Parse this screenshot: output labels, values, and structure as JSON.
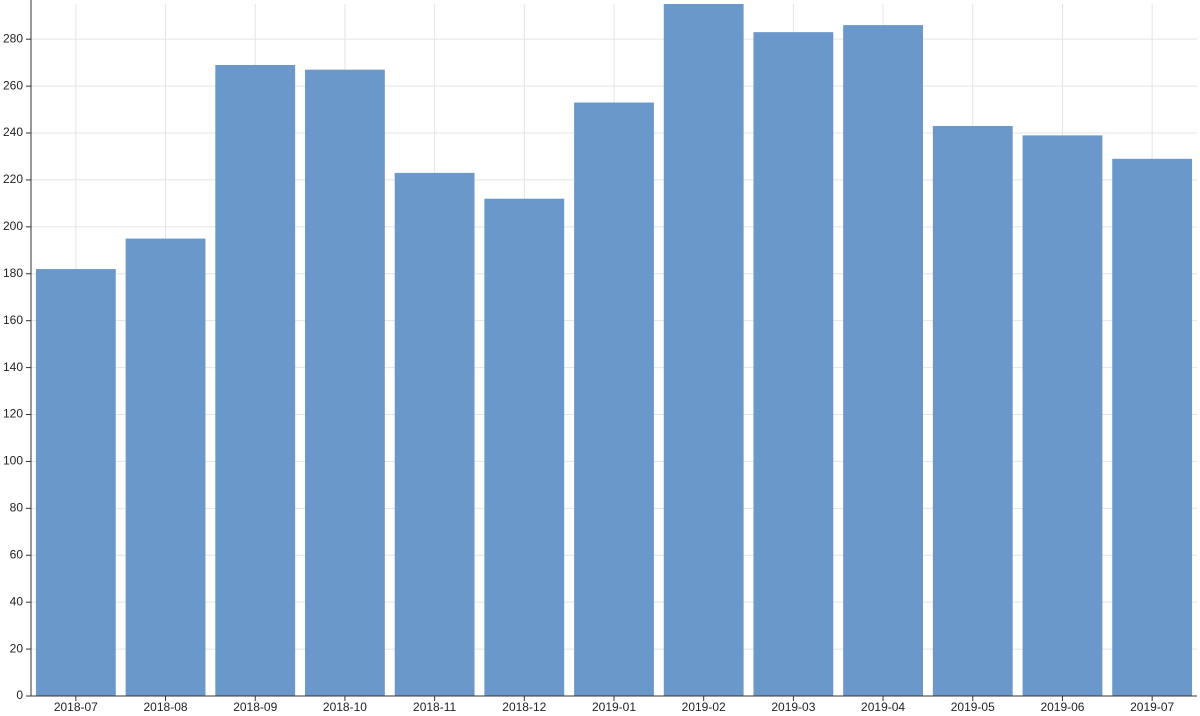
{
  "chart_data": {
    "type": "bar",
    "categories": [
      "2018-07",
      "2018-08",
      "2018-09",
      "2018-10",
      "2018-11",
      "2018-12",
      "2019-01",
      "2019-02",
      "2019-03",
      "2019-04",
      "2019-05",
      "2019-06",
      "2019-07"
    ],
    "values": [
      182,
      195,
      269,
      267,
      223,
      212,
      253,
      295,
      283,
      286,
      243,
      239,
      229
    ],
    "color": "#6b98ca",
    "ylim": [
      0,
      295
    ],
    "yticks": [
      0,
      20,
      40,
      60,
      80,
      100,
      120,
      140,
      160,
      180,
      200,
      220,
      240,
      260,
      280
    ],
    "grid": true
  }
}
